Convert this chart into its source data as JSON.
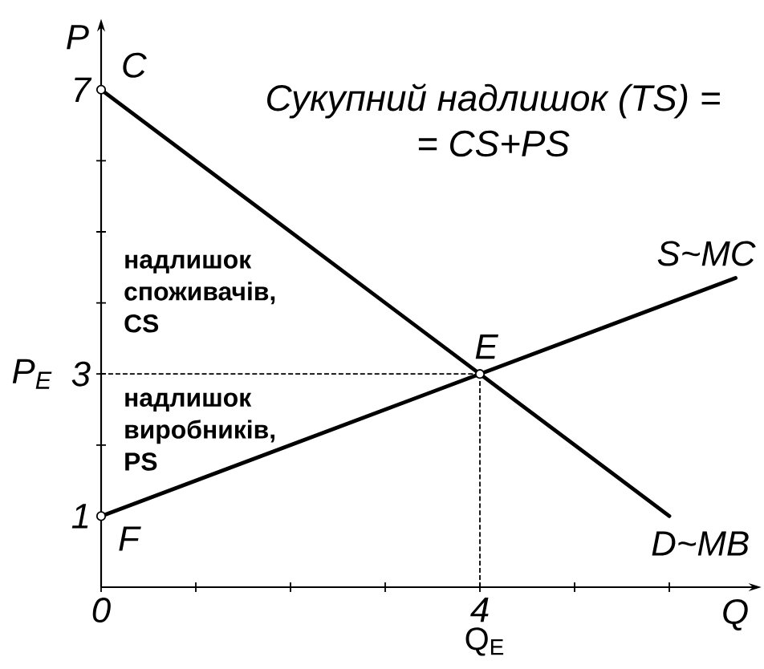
{
  "chart_data": {
    "type": "line",
    "title": "Сукупний надлишок (TS) =",
    "subtitle": "= CS+PS",
    "xlabel": "Q",
    "ylabel": "P",
    "xlim": [
      0,
      6.9
    ],
    "ylim": [
      0,
      7.9
    ],
    "xticks": [
      {
        "value": 0,
        "label": "0"
      },
      {
        "value": 1,
        "label": null
      },
      {
        "value": 2,
        "label": null
      },
      {
        "value": 3,
        "label": null
      },
      4,
      {
        "value": 5,
        "label": null
      },
      {
        "value": 6,
        "label": null
      }
    ],
    "yticks": [
      1,
      {
        "value": 2,
        "label": null
      },
      3,
      {
        "value": 4,
        "label": null
      },
      {
        "value": 5,
        "label": null
      },
      {
        "value": 6,
        "label": null
      },
      7
    ],
    "series": [
      {
        "name": "D~MB",
        "color": "#000000",
        "x": [
          0,
          6
        ],
        "values": [
          7,
          1
        ]
      },
      {
        "name": "S~MC",
        "color": "#000000",
        "x": [
          0,
          6.7
        ],
        "values": [
          1,
          4.35
        ]
      },
      {
        "type": "scatter",
        "color": "#000000",
        "x": [
          0,
          4,
          0
        ],
        "values": [
          7,
          3,
          1
        ],
        "marker": "circle"
      }
    ],
    "ref_lines": [
      {
        "axis": "y",
        "value": 3,
        "label": "P$_{E}$",
        "line_style": "dashed"
      },
      {
        "axis": "x",
        "value": 4,
        "label": "Q$_{E}$",
        "line_style": "dashed"
      }
    ],
    "annotations": [
      "C",
      {
        "text": "E",
        "x": 4,
        "y": 3
      },
      "F",
      "надлишок споживачів, CS",
      "надлишок виробників, PS"
    ],
    "grid": false,
    "marker": "none",
    "line_style": "solid"
  }
}
